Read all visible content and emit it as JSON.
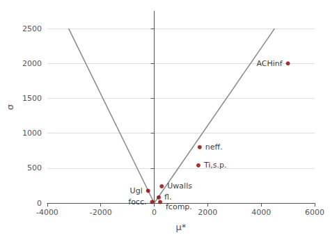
{
  "chart_data": {
    "type": "scatter",
    "xlabel": "μ*",
    "ylabel": "σ",
    "xlim": [
      -4000,
      6000
    ],
    "xticks": [
      -4000,
      -2000,
      0,
      2000,
      4000,
      6000
    ],
    "ylim": [
      0,
      2750
    ],
    "yticks": [
      0,
      500,
      1000,
      1500,
      2000,
      2500
    ],
    "grid": true,
    "series": [
      {
        "type": "line",
        "x": [
          -3200,
          0
        ],
        "values": [
          2500,
          0
        ],
        "color": "#888888"
      },
      {
        "type": "line",
        "x": [
          0,
          4500
        ],
        "values": [
          0,
          2500
        ],
        "color": "#888888"
      },
      {
        "type": "scatter",
        "x": [
          5000,
          1700,
          1650,
          280,
          -230,
          170,
          -80,
          220
        ],
        "values": [
          2000,
          800,
          540,
          240,
          175,
          80,
          15,
          15
        ],
        "labels": [
          "ACHinf",
          "neff.",
          "Ti,s.p.",
          "Uwalls",
          "Ugl",
          "fl.",
          "focc.",
          "fcomp."
        ],
        "color": "#8B0000"
      }
    ]
  }
}
